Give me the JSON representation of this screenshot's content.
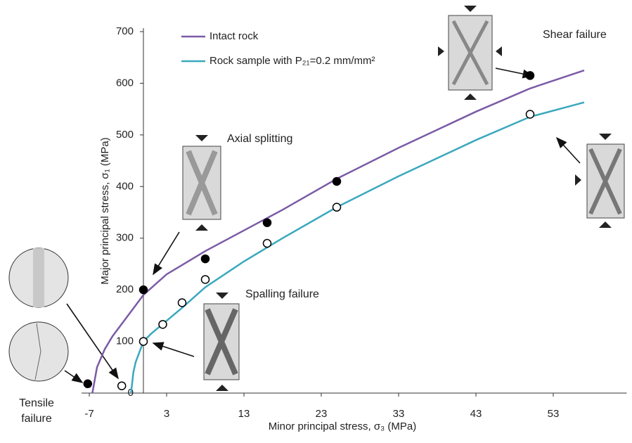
{
  "chart_data": {
    "type": "line",
    "x_label": "Minor principal stress, σ₃ (MPa)",
    "y_label": "Major principal stress, σ₁ (MPa)",
    "xlim": [
      -8,
      62.5
    ],
    "xticks": [
      -7,
      3,
      13,
      23,
      33,
      43,
      53
    ],
    "ylim": [
      0,
      700
    ],
    "yticks": [
      0,
      100,
      200,
      300,
      400,
      500,
      600,
      700
    ],
    "legend": "upper left",
    "series": [
      {
        "name": "Intact rock",
        "color": "#7b5ba6",
        "x": [
          -6.6,
          -6,
          -5,
          -4,
          -2,
          0,
          3,
          8,
          13,
          18,
          25,
          33,
          43,
          50,
          57
        ],
        "values": [
          0,
          50,
          85,
          110,
          150,
          190,
          230,
          275,
          315,
          355,
          415,
          475,
          545,
          590,
          625
        ]
      },
      {
        "name": "Rock sample with P₂₁=0.2 mm/mm²",
        "color": "#3aa8bd",
        "x": [
          -1.6,
          -1.3,
          -1,
          -0.5,
          0,
          1,
          3,
          5,
          8,
          13,
          18,
          25,
          33,
          43,
          50,
          57
        ],
        "values": [
          0,
          40,
          60,
          80,
          100,
          115,
          140,
          165,
          205,
          255,
          300,
          360,
          420,
          490,
          535,
          563
        ]
      }
    ],
    "points": [
      {
        "marker": "filled",
        "x": [
          -7.2,
          0,
          8,
          16,
          25,
          50
        ],
        "values": [
          18,
          200,
          260,
          330,
          410,
          615
        ]
      },
      {
        "marker": "open",
        "x": [
          -2.8,
          0,
          2.5,
          5,
          8,
          16,
          25,
          50
        ],
        "values": [
          14,
          100,
          133,
          175,
          220,
          290,
          360,
          540
        ]
      }
    ],
    "annotations": [
      "Shear failure",
      "Axial splitting",
      "Spalling failure",
      "Tensile",
      "failure"
    ]
  }
}
